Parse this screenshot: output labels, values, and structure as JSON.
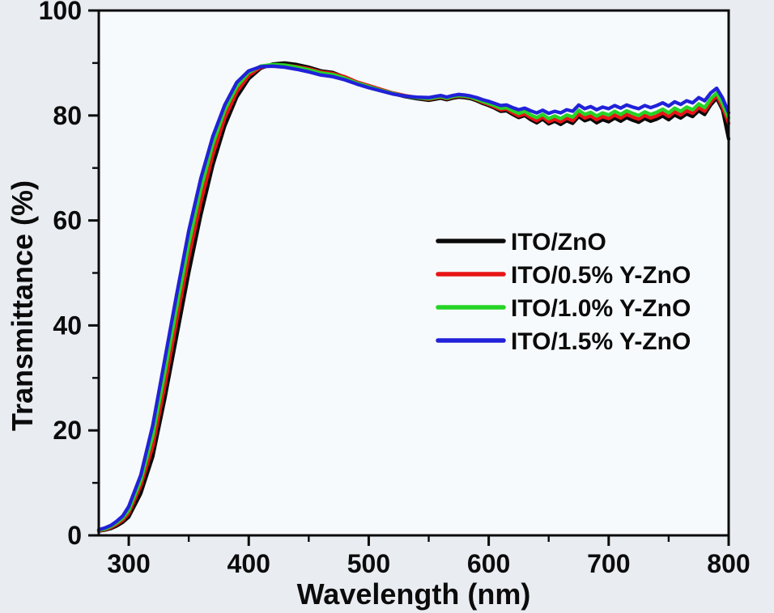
{
  "figure": {
    "background": "#e9edf2",
    "plot_background": "#f7fafc",
    "axis_color": "#0b0b0b"
  },
  "chart_data": {
    "type": "line",
    "title": "",
    "xlabel": "Wavelength (nm)",
    "ylabel": "Transmittance (%)",
    "xlim": [
      275,
      800
    ],
    "ylim": [
      0,
      100
    ],
    "x_major_ticks": [
      300,
      400,
      500,
      600,
      700,
      800
    ],
    "x_minor_ticks": [
      350,
      450,
      550,
      650,
      750
    ],
    "y_major_ticks": [
      0,
      20,
      40,
      60,
      80,
      100
    ],
    "y_minor_ticks": [
      10,
      30,
      50,
      70,
      90
    ],
    "grid": false,
    "legend_position": "center-right",
    "x": [
      275,
      280,
      285,
      290,
      295,
      300,
      310,
      320,
      330,
      340,
      350,
      360,
      370,
      380,
      390,
      400,
      410,
      420,
      430,
      440,
      450,
      460,
      470,
      480,
      490,
      500,
      510,
      520,
      530,
      540,
      550,
      555,
      560,
      565,
      570,
      575,
      580,
      585,
      590,
      595,
      600,
      605,
      610,
      615,
      620,
      625,
      630,
      635,
      640,
      645,
      650,
      655,
      660,
      665,
      670,
      675,
      680,
      685,
      690,
      695,
      700,
      705,
      710,
      715,
      720,
      725,
      730,
      735,
      740,
      745,
      750,
      755,
      760,
      765,
      770,
      775,
      780,
      785,
      790,
      795,
      800
    ],
    "series": [
      {
        "name": "ITO/ZnO",
        "color": "#0a0a0a",
        "values": [
          0.8,
          1.0,
          1.3,
          1.8,
          2.5,
          3.5,
          8,
          15,
          26,
          38,
          50,
          61,
          70.5,
          78,
          83.5,
          87,
          89,
          89.8,
          90,
          89.7,
          89.2,
          88.5,
          88.2,
          87.3,
          86.3,
          85.6,
          84.9,
          84.2,
          83.6,
          83.2,
          82.9,
          83.1,
          83.3,
          83.0,
          83.3,
          83.5,
          83.4,
          83.2,
          82.8,
          82.3,
          81.9,
          81.4,
          80.8,
          80.9,
          80.2,
          79.6,
          80.0,
          79.2,
          78.6,
          79.3,
          78.4,
          78.9,
          78.3,
          79.0,
          78.5,
          79.8,
          79.0,
          79.4,
          78.6,
          79.2,
          78.8,
          79.5,
          78.9,
          79.6,
          79.1,
          78.7,
          79.4,
          78.9,
          79.3,
          79.9,
          79.2,
          80.1,
          79.5,
          80.3,
          79.8,
          80.9,
          80.2,
          82.0,
          83.3,
          81.0,
          75.5
        ]
      },
      {
        "name": "ITO/0.5% Y-ZnO",
        "color": "#e81416",
        "values": [
          0.9,
          1.1,
          1.5,
          2.1,
          2.9,
          4.2,
          9.5,
          17,
          28.5,
          41,
          53,
          63.5,
          72.5,
          79.5,
          84.5,
          87.6,
          89.2,
          89.6,
          89.6,
          89.3,
          88.9,
          88.3,
          88.0,
          87.4,
          86.4,
          85.7,
          85.0,
          84.3,
          83.8,
          83.4,
          83.1,
          83.3,
          83.5,
          83.2,
          83.5,
          83.7,
          83.6,
          83.4,
          83.0,
          82.5,
          82.1,
          81.6,
          81.1,
          81.2,
          80.5,
          79.9,
          80.3,
          79.6,
          79.0,
          79.7,
          78.8,
          79.3,
          78.8,
          79.5,
          79.0,
          80.3,
          79.5,
          79.9,
          79.2,
          79.8,
          79.4,
          80.1,
          79.5,
          80.2,
          79.7,
          79.3,
          80.0,
          79.5,
          79.9,
          80.5,
          79.8,
          80.7,
          80.1,
          80.9,
          80.4,
          81.5,
          80.8,
          82.5,
          83.8,
          81.5,
          78.5
        ]
      },
      {
        "name": "ITO/1.0% Y-ZnO",
        "color": "#25d425",
        "values": [
          1.0,
          1.2,
          1.7,
          2.4,
          3.3,
          4.8,
          10.5,
          19,
          31,
          43.5,
          55.5,
          66,
          74.5,
          81,
          85.5,
          88.2,
          89.4,
          89.7,
          89.6,
          89.2,
          88.7,
          88.1,
          87.8,
          87.1,
          86.2,
          85.5,
          84.8,
          84.2,
          83.7,
          83.4,
          83.2,
          83.4,
          83.6,
          83.3,
          83.6,
          83.8,
          83.7,
          83.5,
          83.1,
          82.7,
          82.3,
          81.9,
          81.4,
          81.5,
          80.9,
          80.4,
          80.8,
          80.1,
          79.6,
          80.2,
          79.4,
          79.9,
          79.4,
          80.1,
          79.7,
          81.0,
          80.2,
          80.6,
          79.9,
          80.5,
          80.1,
          80.8,
          80.2,
          80.9,
          80.4,
          80.0,
          80.7,
          80.2,
          80.6,
          81.2,
          80.5,
          81.4,
          80.8,
          81.6,
          81.1,
          82.2,
          81.5,
          83.2,
          84.3,
          82.2,
          79.5
        ]
      },
      {
        "name": "ITO/1.5% Y-ZnO",
        "color": "#2121d9",
        "values": [
          1.1,
          1.4,
          1.9,
          2.7,
          3.7,
          5.5,
          11.5,
          21,
          33.5,
          46,
          58,
          68,
          76,
          82,
          86.3,
          88.5,
          89.3,
          89.4,
          89.2,
          88.8,
          88.3,
          87.7,
          87.4,
          86.8,
          86.0,
          85.3,
          84.7,
          84.1,
          83.7,
          83.5,
          83.4,
          83.6,
          83.8,
          83.5,
          83.8,
          84.0,
          83.9,
          83.7,
          83.4,
          83.0,
          82.7,
          82.3,
          81.9,
          82.0,
          81.5,
          81.1,
          81.4,
          80.9,
          80.5,
          81.0,
          80.4,
          80.8,
          80.5,
          81.1,
          80.8,
          82.0,
          81.3,
          81.7,
          81.1,
          81.6,
          81.3,
          81.9,
          81.4,
          82.0,
          81.6,
          81.3,
          81.9,
          81.5,
          81.9,
          82.4,
          81.8,
          82.6,
          82.1,
          82.8,
          82.4,
          83.4,
          82.8,
          84.3,
          85.2,
          83.3,
          80.5
        ]
      }
    ]
  }
}
